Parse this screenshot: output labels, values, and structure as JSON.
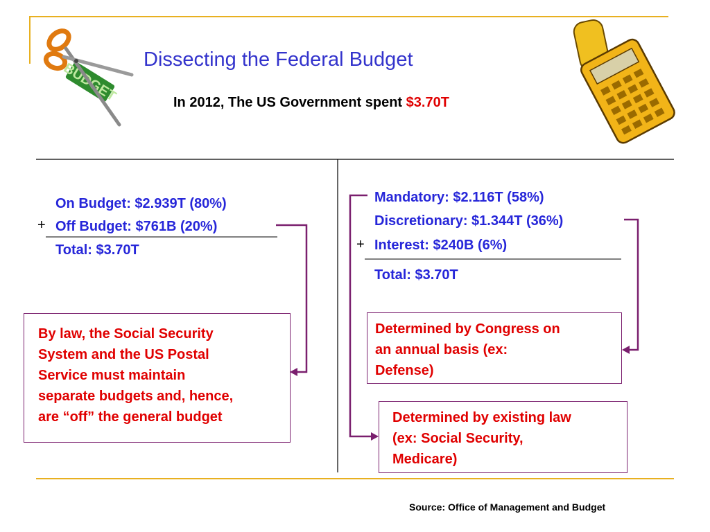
{
  "slide": {
    "title": "Dissecting the Federal Budget",
    "subtitle_prefix": "In 2012, The US Government spent ",
    "subtitle_amount": "$3.70T",
    "left_column": {
      "on_budget": "On Budget:  $2.939T (80%)",
      "plus": "+",
      "off_budget": "Off Budget:  $761B (20%)",
      "total": "Total:  $3.70T",
      "note": [
        "By law, the Social Security",
        "System and the US Postal",
        "Service must maintain",
        "separate budgets and, hence,",
        "are “off” the general budget"
      ]
    },
    "right_column": {
      "mandatory": "Mandatory:  $2.116T (58%)",
      "discretionary": "Discretionary:  $1.344T (36%)",
      "plus": "+",
      "interest": "Interest:  $240B (6%)",
      "total": "Total:  $3.70T",
      "discretionary_note": [
        "Determined by Congress on",
        "an annual basis (ex:",
        "Defense)"
      ],
      "mandatory_note": [
        "Determined by existing law",
        "(ex: Social Security,",
        "Medicare)"
      ]
    },
    "source": "Source: Office of Management and Budget",
    "colors": {
      "accent_gold": "#e8b020",
      "title_blue": "#3333cc",
      "text_blue": "#2626d9",
      "red": "#e00000",
      "connector_purple": "#7a1f6e"
    },
    "icons": [
      "scissors-budget-icon",
      "calculator-icon"
    ]
  }
}
